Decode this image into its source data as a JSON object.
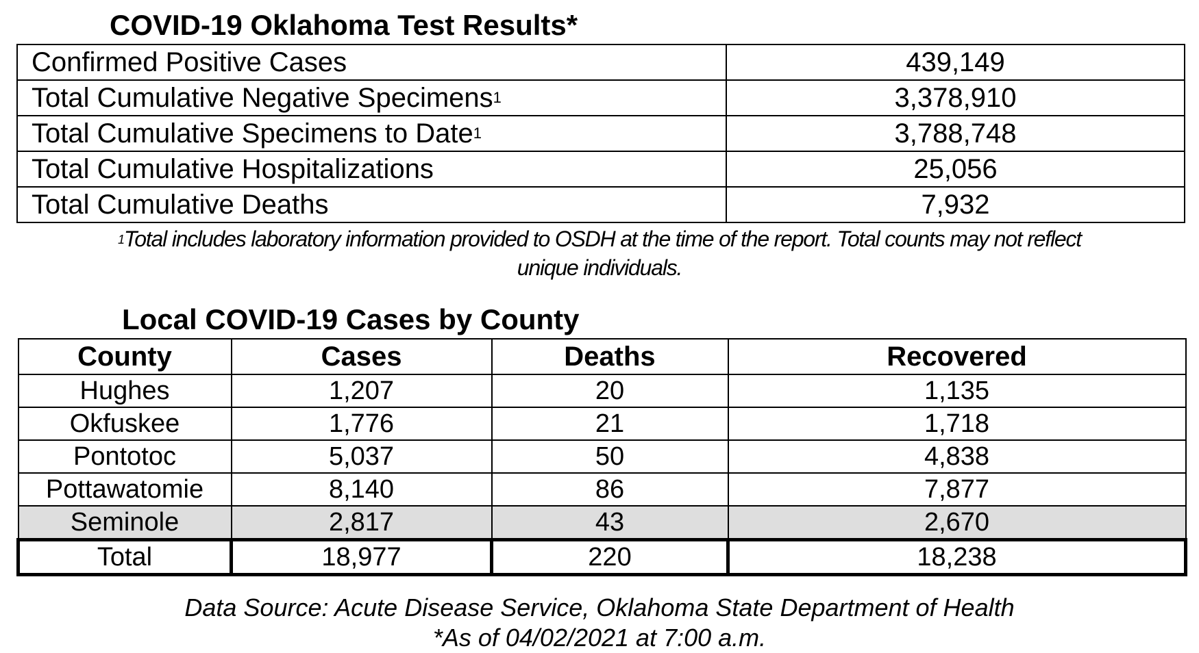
{
  "test_results": {
    "title": "COVID-19 Oklahoma Test Results*",
    "rows": [
      {
        "label": "Confirmed Positive Cases",
        "sup": "",
        "value": "439,149"
      },
      {
        "label": "Total Cumulative Negative Specimens",
        "sup": "1",
        "value": "3,378,910"
      },
      {
        "label": "Total Cumulative Specimens to Date",
        "sup": "1",
        "value": "3,788,748"
      },
      {
        "label": "Total Cumulative Hospitalizations",
        "sup": "",
        "value": "25,056"
      },
      {
        "label": "Total Cumulative Deaths",
        "sup": "",
        "value": "7,932"
      }
    ],
    "footnote_mark": "1",
    "footnote_line1": "Total includes laboratory information provided to OSDH at the time of the report. Total counts may not reflect",
    "footnote_line2": "unique individuals."
  },
  "county_cases": {
    "title": "Local COVID-19 Cases by County",
    "headers": [
      "County",
      "Cases",
      "Deaths",
      "Recovered"
    ],
    "rows": [
      [
        "Hughes",
        "1,207",
        "20",
        "1,135"
      ],
      [
        "Okfuskee",
        "1,776",
        "21",
        "1,718"
      ],
      [
        "Pontotoc",
        "5,037",
        "50",
        "4,838"
      ],
      [
        "Pottawatomie",
        "8,140",
        "86",
        "7,877"
      ],
      [
        "Seminole",
        "2,817",
        "43",
        "2,670"
      ]
    ],
    "total": [
      "Total",
      "18,977",
      "220",
      "18,238"
    ],
    "shaded_row_color": "#dedede"
  },
  "source": {
    "line1": "Data Source: Acute Disease Service, Oklahoma State Department of Health",
    "line2": "*As of 04/02/2021 at 7:00 a.m."
  }
}
